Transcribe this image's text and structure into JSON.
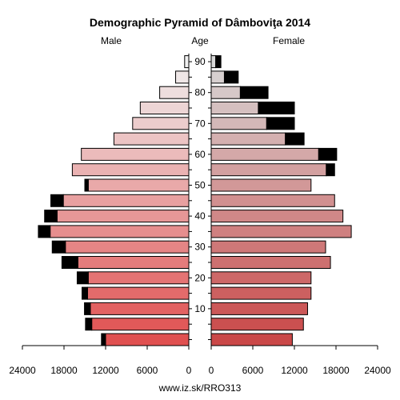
{
  "chart_data": {
    "type": "bar",
    "title": "Demographic Pyramid of Dâmboviţa 2014",
    "left_label": "Male",
    "center_label": "Age",
    "right_label": "Female",
    "footer": "www.iz.sk/RRO313",
    "age_groups": [
      "0-4",
      "5-9",
      "10-14",
      "15-19",
      "20-24",
      "25-29",
      "30-34",
      "35-39",
      "40-44",
      "45-49",
      "50-54",
      "55-59",
      "60-64",
      "65-69",
      "70-74",
      "75-79",
      "80-84",
      "85-89",
      "90+"
    ],
    "age_ticks": [
      "10",
      "20",
      "30",
      "40",
      "50",
      "60",
      "70",
      "80",
      "90"
    ],
    "x_ticks_male": [
      "24000",
      "18000",
      "12000",
      "6000",
      "0"
    ],
    "x_ticks_female": [
      "0",
      "6000",
      "12000",
      "18000",
      "24000"
    ],
    "xlim": [
      0,
      24000
    ],
    "series": [
      {
        "name": "Male",
        "values": [
          12000,
          14000,
          14200,
          14600,
          14500,
          16000,
          17800,
          20000,
          19000,
          18100,
          14500,
          16800,
          15500,
          10800,
          8100,
          7000,
          4200,
          1900,
          600
        ]
      },
      {
        "name": "Female",
        "values": [
          11700,
          13300,
          13900,
          14400,
          14400,
          17200,
          16500,
          20200,
          19000,
          17800,
          14400,
          17800,
          18100,
          13400,
          12000,
          12000,
          8200,
          3900,
          1400
        ]
      }
    ],
    "female_core": [
      11700,
      13300,
      13900,
      14400,
      14400,
      17200,
      16500,
      20200,
      19000,
      17800,
      14400,
      16600,
      15500,
      10700,
      8000,
      6800,
      4200,
      1900,
      650
    ],
    "male_excess": [
      600,
      900,
      850,
      800,
      1600,
      2300,
      1900,
      1700,
      1800,
      1800,
      500,
      0,
      0,
      0,
      0,
      0,
      0,
      0,
      0
    ],
    "colors": {
      "young": "#e05050",
      "old": "#f0f0f0",
      "excess": "#000000"
    }
  }
}
